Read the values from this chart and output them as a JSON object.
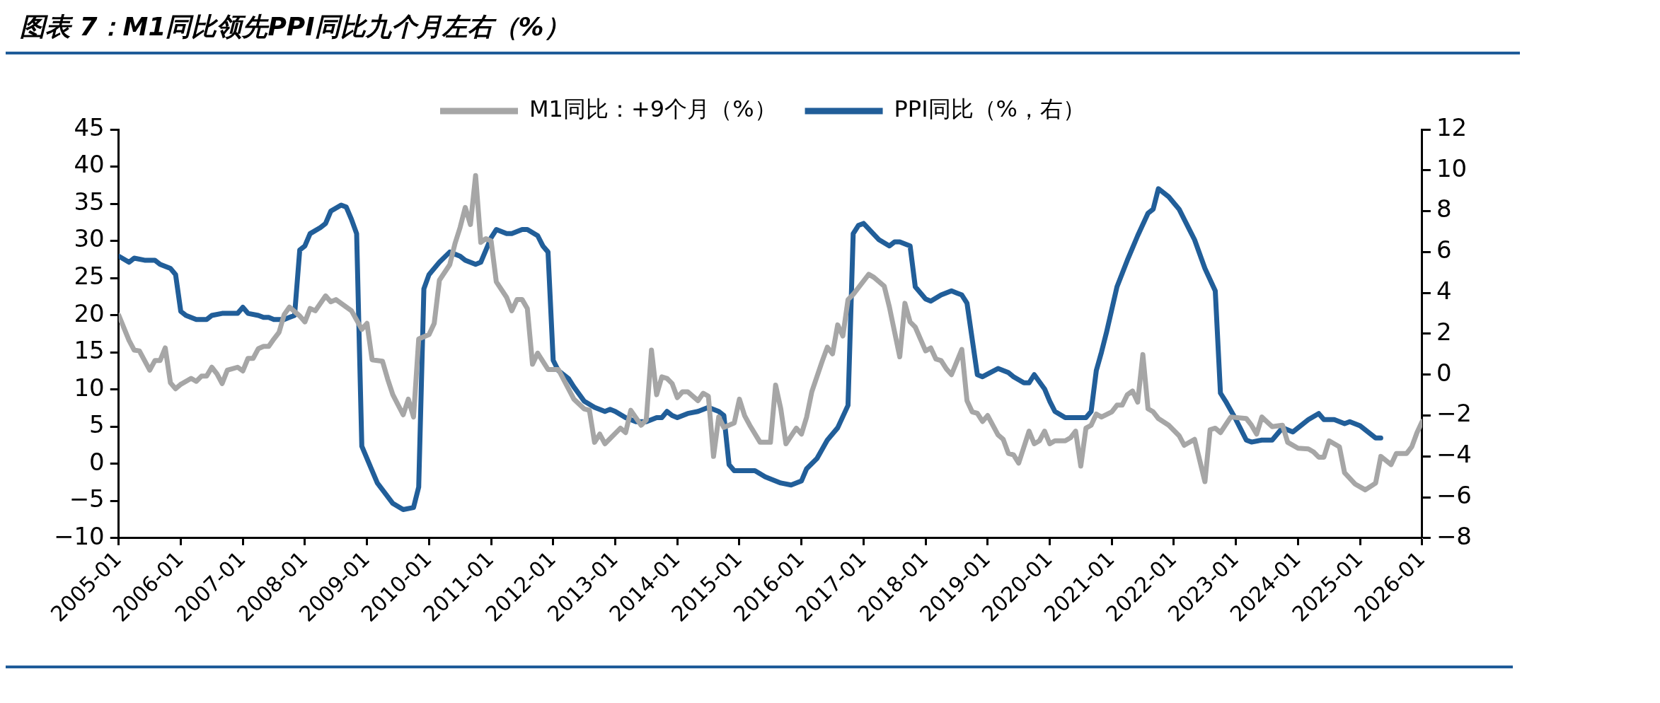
{
  "chart_data": {
    "type": "line",
    "title": "图表 7：M1同比领先PPI同比九个月左右（%）",
    "xlim": [
      "2005-01",
      "2026-01"
    ],
    "xticks": [
      "2005-01",
      "2006-01",
      "2007-01",
      "2008-01",
      "2009-01",
      "2010-01",
      "2011-01",
      "2012-01",
      "2013-01",
      "2014-01",
      "2015-01",
      "2016-01",
      "2017-01",
      "2018-01",
      "2019-01",
      "2020-01",
      "2021-01",
      "2022-01",
      "2023-01",
      "2024-01",
      "2025-01",
      "2026-01"
    ],
    "ylim": [
      -10,
      45
    ],
    "yticks": [
      -10,
      -5,
      0,
      5,
      10,
      15,
      20,
      25,
      30,
      35,
      40,
      45
    ],
    "y2lim": [
      -8,
      12
    ],
    "y2ticks": [
      -8,
      -6,
      -4,
      -2,
      0,
      2,
      4,
      6,
      8,
      10,
      12
    ],
    "grid": false,
    "legend": "top",
    "marker": "none",
    "line_style": "solid",
    "series": [
      {
        "name": "M1同比：+9个月（%）",
        "color": "#a6a6a6",
        "axis": "y",
        "x": [
          "2005-01",
          "2005-03",
          "2005-04",
          "2005-05",
          "2005-07",
          "2005-08",
          "2005-09",
          "2005-10",
          "2005-11",
          "2005-12",
          "2006-01",
          "2006-03",
          "2006-04",
          "2006-05",
          "2006-06",
          "2006-07",
          "2006-08",
          "2006-09",
          "2006-10",
          "2006-12",
          "2007-01",
          "2007-02",
          "2007-03",
          "2007-04",
          "2007-05",
          "2007-06",
          "2007-07",
          "2007-08",
          "2007-09",
          "2007-10",
          "2007-12",
          "2008-01",
          "2008-02",
          "2008-03",
          "2008-05",
          "2008-06",
          "2008-07",
          "2008-10",
          "2008-12",
          "2009-01",
          "2009-02",
          "2009-04",
          "2009-05",
          "2009-06",
          "2009-08",
          "2009-09",
          "2009-10",
          "2009-11",
          "2010-01",
          "2010-02",
          "2010-03",
          "2010-05",
          "2010-06",
          "2010-07",
          "2010-08",
          "2010-09",
          "2010-10",
          "2010-11",
          "2010-12",
          "2011-01",
          "2011-02",
          "2011-04",
          "2011-05",
          "2011-06",
          "2011-07",
          "2011-08",
          "2011-09",
          "2011-10",
          "2011-12",
          "2012-02",
          "2012-05",
          "2012-07",
          "2012-08",
          "2012-09",
          "2012-10",
          "2012-11",
          "2013-02",
          "2013-03",
          "2013-04",
          "2013-06",
          "2013-07",
          "2013-08",
          "2013-09",
          "2013-10",
          "2013-11",
          "2013-12",
          "2014-01",
          "2014-02",
          "2014-03",
          "2014-05",
          "2014-06",
          "2014-07",
          "2014-08",
          "2014-09",
          "2014-10",
          "2014-12",
          "2015-01",
          "2015-02",
          "2015-03",
          "2015-05",
          "2015-07",
          "2015-08",
          "2015-09",
          "2015-10",
          "2015-12",
          "2016-01",
          "2016-02",
          "2016-03",
          "2016-05",
          "2016-06",
          "2016-07",
          "2016-08",
          "2016-09",
          "2016-10",
          "2016-11",
          "2017-02",
          "2017-03",
          "2017-05",
          "2017-06",
          "2017-08",
          "2017-09",
          "2017-10",
          "2017-11",
          "2018-01",
          "2018-02",
          "2018-03",
          "2018-04",
          "2018-05",
          "2018-06",
          "2018-08",
          "2018-09",
          "2018-10",
          "2018-11",
          "2018-12",
          "2019-01",
          "2019-03",
          "2019-04",
          "2019-05",
          "2019-06",
          "2019-07",
          "2019-09",
          "2019-10",
          "2019-11",
          "2019-12",
          "2020-01",
          "2020-02",
          "2020-04",
          "2020-05",
          "2020-06",
          "2020-07",
          "2020-08",
          "2020-09",
          "2020-10",
          "2020-11",
          "2021-01",
          "2021-02",
          "2021-03",
          "2021-04",
          "2021-05",
          "2021-06",
          "2021-07",
          "2021-08",
          "2021-09",
          "2021-10",
          "2021-12",
          "2022-02",
          "2022-03",
          "2022-05",
          "2022-07",
          "2022-08",
          "2022-09",
          "2022-10",
          "2022-12",
          "2023-03",
          "2023-04",
          "2023-05",
          "2023-06",
          "2023-08",
          "2023-10",
          "2023-11",
          "2024-01",
          "2024-03",
          "2024-04",
          "2024-05",
          "2024-06",
          "2024-07",
          "2024-09",
          "2024-10",
          "2024-12",
          "2025-02",
          "2025-04",
          "2025-05",
          "2025-07",
          "2025-08",
          "2025-10",
          "2025-11",
          "2025-12",
          "2026-01"
        ],
        "values": [
          20,
          16.6,
          15.3,
          15.2,
          12.6,
          13.9,
          13.9,
          15.6,
          10.9,
          10.1,
          10.7,
          11.5,
          11.1,
          11.8,
          11.8,
          13,
          12.1,
          10.8,
          12.6,
          13,
          12.5,
          14.2,
          14.2,
          15.5,
          15.8,
          15.8,
          16.8,
          17.7,
          20.1,
          21.1,
          19.9,
          19.1,
          20.9,
          20.6,
          22.6,
          21.8,
          22.1,
          20.6,
          18.1,
          18.9,
          14,
          13.8,
          11.4,
          9.3,
          6.6,
          8.7,
          6.3,
          16.8,
          17.4,
          18.9,
          24.7,
          26.8,
          29.6,
          31.8,
          34.5,
          32.2,
          38.8,
          29.8,
          30.3,
          30,
          24.5,
          22.4,
          20.6,
          22.1,
          22.1,
          20.9,
          13.4,
          14.9,
          12.7,
          12.7,
          8.7,
          7.4,
          7.2,
          2.9,
          4,
          2.7,
          4.8,
          4.2,
          7.2,
          5.2,
          5.9,
          15.3,
          9.3,
          11.7,
          11.5,
          10.8,
          8.9,
          9.7,
          9.7,
          8.5,
          9.5,
          9.1,
          1,
          6.3,
          4.9,
          5.5,
          8.7,
          6.5,
          5.2,
          2.9,
          2.9,
          10.6,
          7.4,
          2.7,
          4.8,
          4,
          6.3,
          9.7,
          13.8,
          15.7,
          14.8,
          18.7,
          17.2,
          22.1,
          22.8,
          25.5,
          25.1,
          23.9,
          21.1,
          14.4,
          21.6,
          19.1,
          18.4,
          15.2,
          15.6,
          14.1,
          13.9,
          12.8,
          12,
          15.4,
          8.5,
          7,
          6.8,
          5.7,
          6.5,
          3.9,
          3.3,
          1.4,
          1.2,
          0.1,
          4.4,
          2.7,
          3.1,
          4.4,
          2.7,
          3.1,
          3.1,
          3.5,
          4.4,
          -0.3,
          4.8,
          5.2,
          6.7,
          6.3,
          7,
          7.9,
          7.9,
          9.3,
          9.8,
          8.3,
          14.7,
          7.4,
          7,
          6.1,
          5.2,
          3.8,
          2.5,
          3.3,
          -2.4,
          4.6,
          4.8,
          4.2,
          6.3,
          6.1,
          5.2,
          4,
          6.3,
          5,
          5.2,
          2.9,
          2.1,
          2,
          1.6,
          0.9,
          0.9,
          3.1,
          2.3,
          -1.2,
          -2.7,
          -3.5,
          -2.6,
          1,
          -0.1,
          1.4,
          1.4,
          2.3,
          4.2,
          5.7
        ]
      },
      {
        "name": "PPI同比（%，右）",
        "color": "#215e99",
        "axis": "y2",
        "x": [
          "2005-01",
          "2005-03",
          "2005-04",
          "2005-06",
          "2005-08",
          "2005-09",
          "2005-11",
          "2005-12",
          "2006-01",
          "2006-02",
          "2006-04",
          "2006-06",
          "2006-07",
          "2006-09",
          "2006-12",
          "2007-01",
          "2007-02",
          "2007-04",
          "2007-05",
          "2007-06",
          "2007-07",
          "2007-09",
          "2007-10",
          "2007-11",
          "2007-12",
          "2008-01",
          "2008-02",
          "2008-04",
          "2008-05",
          "2008-06",
          "2008-08",
          "2008-09",
          "2008-10",
          "2008-11",
          "2008-12",
          "2009-02",
          "2009-03",
          "2009-06",
          "2009-08",
          "2009-10",
          "2009-11",
          "2009-12",
          "2010-01",
          "2010-03",
          "2010-05",
          "2010-07",
          "2010-08",
          "2010-10",
          "2010-11",
          "2011-01",
          "2011-02",
          "2011-04",
          "2011-05",
          "2011-07",
          "2011-08",
          "2011-10",
          "2011-11",
          "2011-12",
          "2012-01",
          "2012-02",
          "2012-04",
          "2012-05",
          "2012-07",
          "2012-09",
          "2012-11",
          "2012-12",
          "2013-01",
          "2013-03",
          "2013-05",
          "2013-07",
          "2013-09",
          "2013-10",
          "2013-11",
          "2013-12",
          "2014-01",
          "2014-03",
          "2014-05",
          "2014-07",
          "2014-09",
          "2014-10",
          "2014-11",
          "2014-12",
          "2015-04",
          "2015-06",
          "2015-09",
          "2015-11",
          "2016-01",
          "2016-02",
          "2016-04",
          "2016-06",
          "2016-08",
          "2016-10",
          "2016-11",
          "2016-12",
          "2017-01",
          "2017-04",
          "2017-06",
          "2017-07",
          "2017-08",
          "2017-10",
          "2017-11",
          "2018-01",
          "2018-02",
          "2018-04",
          "2018-06",
          "2018-07",
          "2018-08",
          "2018-09",
          "2018-11",
          "2018-12",
          "2019-03",
          "2019-05",
          "2019-06",
          "2019-08",
          "2019-09",
          "2019-10",
          "2019-12",
          "2020-01",
          "2020-02",
          "2020-04",
          "2020-08",
          "2020-09",
          "2020-10",
          "2020-11",
          "2020-12",
          "2021-02",
          "2021-04",
          "2021-05",
          "2021-06",
          "2021-08",
          "2021-09",
          "2021-10",
          "2021-12",
          "2022-02",
          "2022-04",
          "2022-05",
          "2022-07",
          "2022-09",
          "2022-10",
          "2022-11",
          "2023-01",
          "2023-03",
          "2023-04",
          "2023-06",
          "2023-08",
          "2023-10",
          "2023-12",
          "2024-03",
          "2024-05",
          "2024-06",
          "2024-08",
          "2024-10",
          "2024-11",
          "2025-01",
          "2025-03",
          "2025-04",
          "2025-05"
        ],
        "values": [
          5.8,
          5.5,
          5.7,
          5.6,
          5.6,
          5.4,
          5.2,
          4.9,
          3.1,
          2.9,
          2.7,
          2.7,
          2.9,
          3,
          3,
          3.3,
          3,
          2.9,
          2.8,
          2.8,
          2.7,
          2.7,
          2.8,
          2.9,
          6.1,
          6.3,
          6.9,
          7.2,
          7.4,
          8,
          8.3,
          8.2,
          7.6,
          6.9,
          -3.5,
          -4.7,
          -5.3,
          -6.3,
          -6.6,
          -6.5,
          -5.5,
          4.2,
          4.9,
          5.5,
          6,
          5.8,
          5.6,
          5.4,
          5.5,
          6.7,
          7.1,
          6.9,
          6.9,
          7.1,
          7.1,
          6.8,
          6.3,
          6,
          0.7,
          0.2,
          -0.2,
          -0.6,
          -1.3,
          -1.6,
          -1.8,
          -1.7,
          -1.8,
          -2.1,
          -2.3,
          -2.3,
          -2.1,
          -2.1,
          -1.8,
          -2,
          -2.1,
          -1.9,
          -1.8,
          -1.6,
          -1.8,
          -2,
          -4.4,
          -4.7,
          -4.7,
          -5,
          -5.3,
          -5.4,
          -5.2,
          -4.6,
          -4.1,
          -3.2,
          -2.6,
          -1.5,
          6.9,
          7.3,
          7.4,
          6.6,
          6.3,
          6.5,
          6.5,
          6.3,
          4.3,
          3.7,
          3.6,
          3.9,
          4.1,
          4,
          3.9,
          3.5,
          0,
          -0.1,
          0.3,
          0.1,
          -0.1,
          -0.4,
          -0.4,
          0,
          -0.7,
          -1.3,
          -1.8,
          -2.1,
          -2.1,
          -1.8,
          0.2,
          1.1,
          2.1,
          4.3,
          5.6,
          6.2,
          6.8,
          7.9,
          8.1,
          9.1,
          8.7,
          8.1,
          7.1,
          6.6,
          5.2,
          4.1,
          -0.9,
          -1.3,
          -2.2,
          -3.2,
          -3.3,
          -3.2,
          -3.2,
          -2.6,
          -2.8,
          -2.2,
          -1.9,
          -2.2,
          -2.2,
          -2.4,
          -2.3,
          -2.5,
          -2.9,
          -3.1,
          -3.1
        ]
      }
    ]
  }
}
